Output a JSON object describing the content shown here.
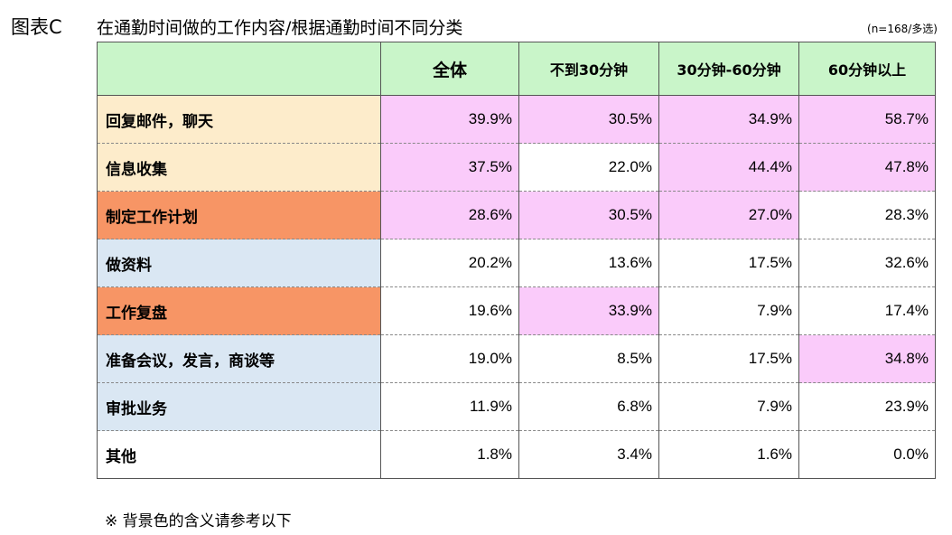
{
  "header": {
    "label": "图表C",
    "title": "在通勤时间做的工作内容/根据通勤时间不同分类",
    "note": "(n=168/多选)"
  },
  "table": {
    "columns": [
      "全体",
      "不到30分钟",
      "30分钟-60分钟",
      "60分钟以上"
    ],
    "rows": [
      {
        "label": "回复邮件，聊天",
        "values": [
          "39.9%",
          "30.5%",
          "34.9%",
          "58.7%"
        ]
      },
      {
        "label": "信息收集",
        "values": [
          "37.5%",
          "22.0%",
          "44.4%",
          "47.8%"
        ]
      },
      {
        "label": "制定工作计划",
        "values": [
          "28.6%",
          "30.5%",
          "27.0%",
          "28.3%"
        ]
      },
      {
        "label": "做资料",
        "values": [
          "20.2%",
          "13.6%",
          "17.5%",
          "32.6%"
        ]
      },
      {
        "label": "工作复盘",
        "values": [
          "19.6%",
          "33.9%",
          "7.9%",
          "17.4%"
        ]
      },
      {
        "label": "准备会议，发言，商谈等",
        "values": [
          "19.0%",
          "8.5%",
          "17.5%",
          "34.8%"
        ]
      },
      {
        "label": "审批业务",
        "values": [
          "11.9%",
          "6.8%",
          "7.9%",
          "23.9%"
        ]
      },
      {
        "label": "其他",
        "values": [
          "1.8%",
          "3.4%",
          "1.6%",
          "0.0%"
        ]
      }
    ]
  },
  "footnote": "※ 背景色的含义请参考以下",
  "colors": {
    "header_bg": "#c9f5c9",
    "label_cream": "#fdeccb",
    "label_orange": "#f79565",
    "label_blue": "#dae7f3",
    "highlight_pink": "#facbfa",
    "white": "#ffffff"
  }
}
